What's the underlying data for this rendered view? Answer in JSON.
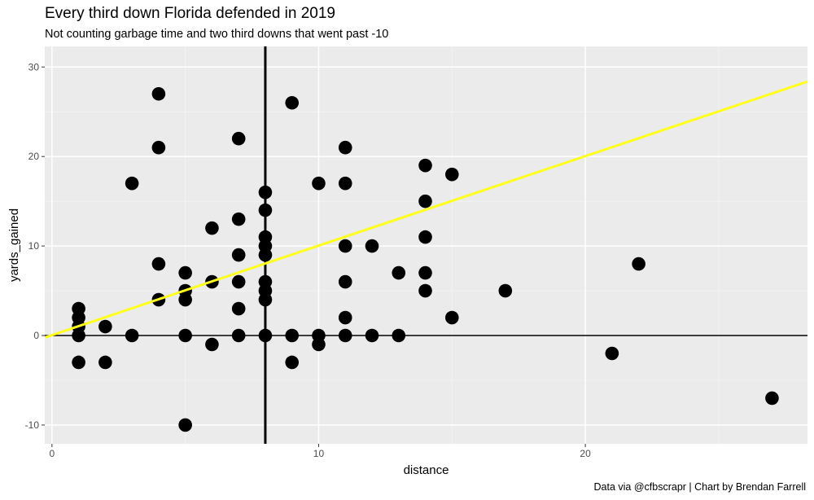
{
  "chart_data": {
    "type": "scatter",
    "title": "Every third down Florida defended in 2019",
    "subtitle": "Not counting garbage time and two third downs that went past -10",
    "caption": "Data via @cfbscrapr | Chart by Brendan Farrell",
    "xlabel": "distance",
    "ylabel": "yards_gained",
    "xlim": [
      -0.27,
      28.33
    ],
    "ylim": [
      -12.1,
      32.3
    ],
    "xticks": [
      0,
      10,
      20
    ],
    "xtick_labels": [
      "0",
      "10",
      "20"
    ],
    "yticks": [
      -10,
      0,
      10,
      20,
      30
    ],
    "ytick_labels": [
      "-10",
      "0",
      "10",
      "20",
      "30"
    ],
    "grid": true,
    "reference_lines": {
      "vertical_x": 8,
      "horizontal_y": 0
    },
    "trend_line": {
      "intercept": 0.05,
      "slope": 1.0,
      "color": "#ffff1a"
    },
    "point_color": "#000000",
    "points": [
      [
        1,
        3
      ],
      [
        1,
        2
      ],
      [
        1,
        1
      ],
      [
        1,
        0
      ],
      [
        1,
        -3
      ],
      [
        2,
        1
      ],
      [
        2,
        -3
      ],
      [
        3,
        17
      ],
      [
        3,
        0
      ],
      [
        4,
        27
      ],
      [
        4,
        21
      ],
      [
        4,
        8
      ],
      [
        4,
        4
      ],
      [
        5,
        7
      ],
      [
        5,
        5
      ],
      [
        5,
        4
      ],
      [
        5,
        0
      ],
      [
        5,
        -10
      ],
      [
        6,
        12
      ],
      [
        6,
        6
      ],
      [
        6,
        -1
      ],
      [
        7,
        22
      ],
      [
        7,
        13
      ],
      [
        7,
        9
      ],
      [
        7,
        6
      ],
      [
        7,
        3
      ],
      [
        7,
        0
      ],
      [
        8,
        16
      ],
      [
        8,
        14
      ],
      [
        8,
        11
      ],
      [
        8,
        10
      ],
      [
        8,
        9
      ],
      [
        8,
        6
      ],
      [
        8,
        5
      ],
      [
        8,
        4
      ],
      [
        8,
        0
      ],
      [
        9,
        26
      ],
      [
        9,
        0
      ],
      [
        9,
        -3
      ],
      [
        10,
        17
      ],
      [
        10,
        0
      ],
      [
        10,
        -1
      ],
      [
        11,
        21
      ],
      [
        11,
        17
      ],
      [
        11,
        10
      ],
      [
        11,
        6
      ],
      [
        11,
        2
      ],
      [
        11,
        0
      ],
      [
        12,
        10
      ],
      [
        12,
        0
      ],
      [
        13,
        7
      ],
      [
        13,
        0
      ],
      [
        14,
        19
      ],
      [
        14,
        15
      ],
      [
        14,
        11
      ],
      [
        14,
        7
      ],
      [
        14,
        5
      ],
      [
        15,
        18
      ],
      [
        15,
        2
      ],
      [
        17,
        5
      ],
      [
        21,
        -2
      ],
      [
        22,
        8
      ],
      [
        27,
        -7
      ]
    ]
  }
}
